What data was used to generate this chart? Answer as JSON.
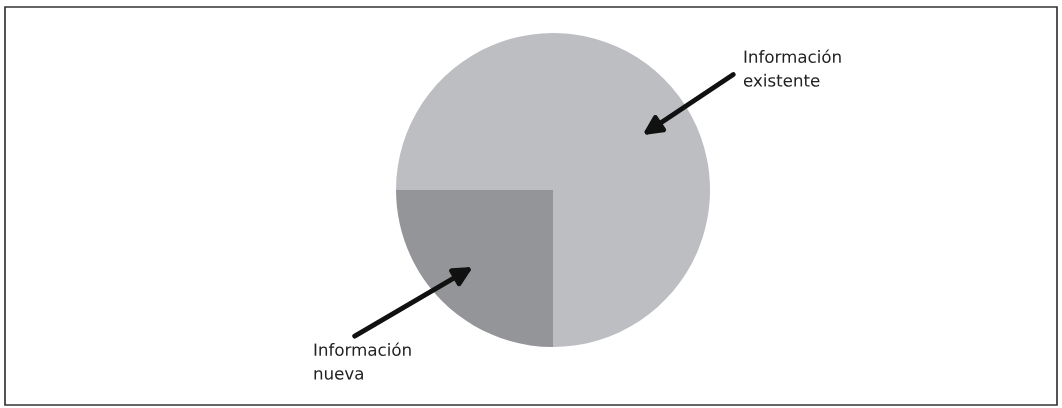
{
  "chart_data": {
    "type": "pie",
    "categories": [
      "Información\nexistente",
      "Información\nnueva"
    ],
    "values": [
      75,
      25
    ],
    "colors": [
      "#bdbec2",
      "#949598"
    ],
    "legend": false
  }
}
